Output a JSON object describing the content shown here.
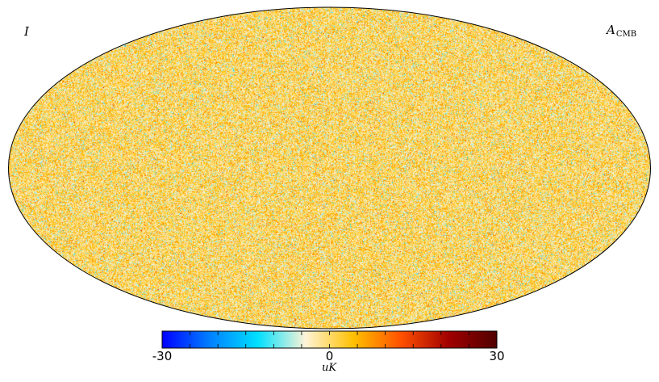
{
  "chart_data": {
    "type": "heatmap",
    "projection": "mollweide",
    "map_label_left": "I",
    "map_label_right_main": "A",
    "map_label_right_sub": "CMB",
    "colorbar": {
      "min": -30,
      "max": 30,
      "tick_labels": [
        "-30",
        "0",
        "30"
      ],
      "tick_values": [
        -30,
        0,
        30
      ],
      "unit": "uK",
      "colormap": [
        "#0000ff",
        "#0080ff",
        "#00e0ff",
        "#fff3d6",
        "#ffc000",
        "#ff5000",
        "#a00000",
        "#500000"
      ]
    },
    "field_character": "isotropic fine-scale noise with mostly small amplitudes"
  },
  "colors": {
    "outline": "#000000",
    "background": "#ffffff"
  }
}
